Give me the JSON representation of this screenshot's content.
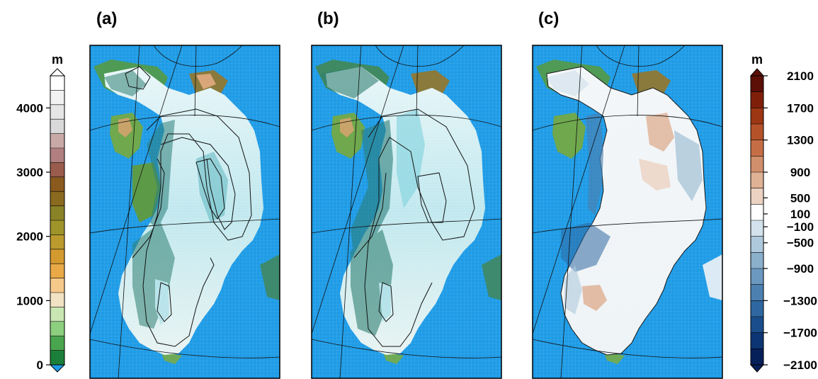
{
  "panels": [
    {
      "label": "(a)"
    },
    {
      "label": "(b)"
    },
    {
      "label": "(c)"
    }
  ],
  "left_colorbar": {
    "unit": "m",
    "ticks": [
      "4000",
      "3000",
      "2000",
      "1000",
      "0"
    ],
    "tick_values": [
      4000,
      3000,
      2000,
      1000,
      0
    ],
    "min": 0,
    "max": 4500,
    "colors": [
      "#1b7f3a",
      "#4aa64e",
      "#8ccf7e",
      "#c9e7b3",
      "#f1e3c3",
      "#f5c98a",
      "#e8a946",
      "#d59a2f",
      "#bb9a2e",
      "#9f942a",
      "#8a8226",
      "#8a6a1f",
      "#8a5a1e",
      "#9a5c4c",
      "#b17f7f",
      "#c9a9a6",
      "#d9d9d9",
      "#e6e6e6",
      "#f2f2f2",
      "#ffffff"
    ]
  },
  "right_colorbar": {
    "unit": "m",
    "ticks": [
      "2100",
      "1700",
      "1300",
      "900",
      "500",
      "100",
      "−100",
      "−500",
      "−900",
      "−1300",
      "−1700",
      "−2100"
    ],
    "colors": [
      "#5b0f06",
      "#7f1f0a",
      "#9c3613",
      "#b5522a",
      "#c56e46",
      "#d28f6b",
      "#dfb296",
      "#ecd2c2",
      "#ffffff",
      "#d3e2ec",
      "#afc9dc",
      "#8ab0cc",
      "#6a98bf",
      "#4b80b1",
      "#2f67a0",
      "#1a4d8b",
      "#0c3574",
      "#06205a"
    ]
  },
  "colors": {
    "ocean": "#1e9be6",
    "frame": "#000000"
  }
}
